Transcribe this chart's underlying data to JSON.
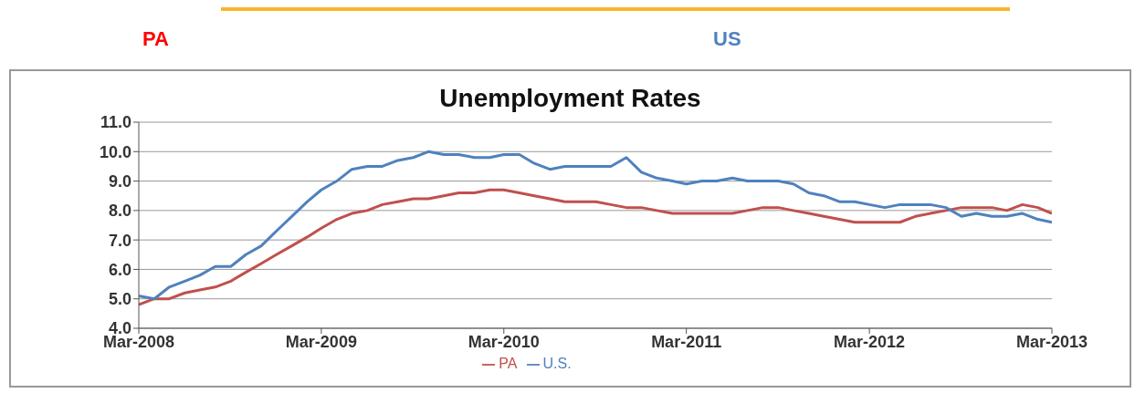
{
  "chart_data": {
    "type": "line",
    "title": "Unemployment Rates",
    "annotations": [
      "PA",
      "US"
    ],
    "x": [
      "2008-03",
      "2008-04",
      "2008-05",
      "2008-06",
      "2008-07",
      "2008-08",
      "2008-09",
      "2008-10",
      "2008-11",
      "2008-12",
      "2009-01",
      "2009-02",
      "2009-03",
      "2009-04",
      "2009-05",
      "2009-06",
      "2009-07",
      "2009-08",
      "2009-09",
      "2009-10",
      "2009-11",
      "2009-12",
      "2010-01",
      "2010-02",
      "2010-03",
      "2010-04",
      "2010-05",
      "2010-06",
      "2010-07",
      "2010-08",
      "2010-09",
      "2010-10",
      "2010-11",
      "2010-12",
      "2011-01",
      "2011-02",
      "2011-03",
      "2011-04",
      "2011-05",
      "2011-06",
      "2011-07",
      "2011-08",
      "2011-09",
      "2011-10",
      "2011-11",
      "2011-12",
      "2012-01",
      "2012-02",
      "2012-03",
      "2012-04",
      "2012-05",
      "2012-06",
      "2012-07",
      "2012-08",
      "2012-09",
      "2012-10",
      "2012-11",
      "2012-12",
      "2013-01",
      "2013-02",
      "2013-03"
    ],
    "series": [
      {
        "name": "PA",
        "color": "#c0504d",
        "values": [
          4.8,
          5.0,
          5.0,
          5.2,
          5.3,
          5.4,
          5.6,
          5.9,
          6.2,
          6.5,
          6.8,
          7.1,
          7.4,
          7.7,
          7.9,
          8.0,
          8.2,
          8.3,
          8.4,
          8.4,
          8.5,
          8.6,
          8.6,
          8.7,
          8.7,
          8.6,
          8.5,
          8.4,
          8.3,
          8.3,
          8.3,
          8.2,
          8.1,
          8.1,
          8.0,
          7.9,
          7.9,
          7.9,
          7.9,
          7.9,
          8.0,
          8.1,
          8.1,
          8.0,
          7.9,
          7.8,
          7.7,
          7.6,
          7.6,
          7.6,
          7.6,
          7.8,
          7.9,
          8.0,
          8.1,
          8.1,
          8.1,
          8.0,
          8.2,
          8.1,
          7.9
        ]
      },
      {
        "name": "U.S.",
        "color": "#4f81bd",
        "values": [
          5.1,
          5.0,
          5.4,
          5.6,
          5.8,
          6.1,
          6.1,
          6.5,
          6.8,
          7.3,
          7.8,
          8.3,
          8.7,
          9.0,
          9.4,
          9.5,
          9.5,
          9.7,
          9.8,
          10.0,
          9.9,
          9.9,
          9.8,
          9.8,
          9.9,
          9.9,
          9.6,
          9.4,
          9.5,
          9.5,
          9.5,
          9.5,
          9.8,
          9.3,
          9.1,
          9.0,
          8.9,
          9.0,
          9.0,
          9.1,
          9.0,
          9.0,
          9.0,
          8.9,
          8.6,
          8.5,
          8.3,
          8.3,
          8.2,
          8.1,
          8.2,
          8.2,
          8.2,
          8.1,
          7.8,
          7.9,
          7.8,
          7.8,
          7.9,
          7.7,
          7.6
        ]
      }
    ],
    "xlim": [
      "2008-03",
      "2013-03"
    ],
    "xticks": [
      {
        "value": "2008-03",
        "label": "Mar-2008"
      },
      {
        "value": "2009-03",
        "label": "Mar-2009"
      },
      {
        "value": "2010-03",
        "label": "Mar-2010"
      },
      {
        "value": "2011-03",
        "label": "Mar-2011"
      },
      {
        "value": "2012-03",
        "label": "Mar-2012"
      },
      {
        "value": "2013-03",
        "label": "Mar-2013"
      }
    ],
    "ylim": [
      4,
      11
    ],
    "yticks": [
      {
        "value": 4,
        "label": "4.0"
      },
      {
        "value": 5,
        "label": "5.0"
      },
      {
        "value": 6,
        "label": "6.0"
      },
      {
        "value": 7,
        "label": "7.0"
      },
      {
        "value": 8,
        "label": "8.0"
      },
      {
        "value": 9,
        "label": "9.0"
      },
      {
        "value": 10,
        "label": "10.0"
      },
      {
        "value": 11,
        "label": "11.0"
      }
    ],
    "grid": "y",
    "legend": "bottom",
    "marker": "none",
    "line_style": "solid"
  }
}
